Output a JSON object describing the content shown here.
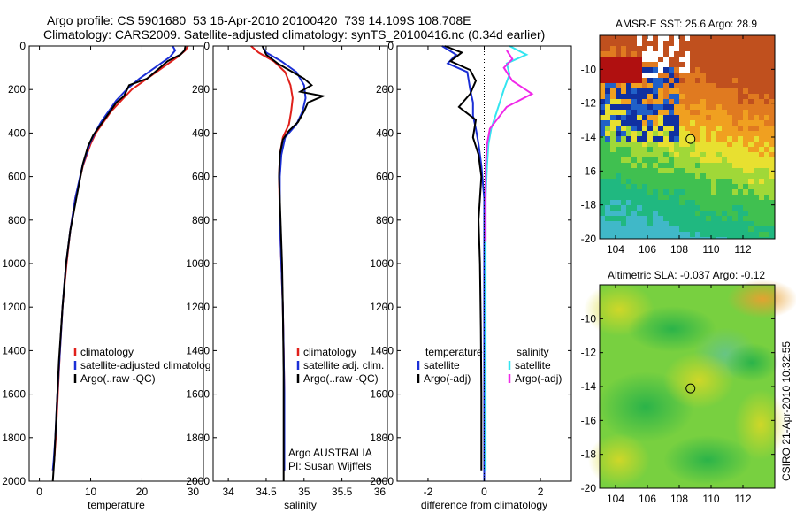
{
  "header": {
    "line1": "Argo profile: CS 5901680_53 16-Apr-2010 20100420_739 14.109S 108.708E",
    "line2": "Climatology: CARS2009. Satellite-adjusted climatology: synTS_20100416.nc (0.34d earlier)"
  },
  "side_label": "CSIRO 21-Apr-2010 10:32:55",
  "colors": {
    "climatology": "#e0201b",
    "satellite": "#1b2fd6",
    "argo": "#000000",
    "salinity_sat": "#33e5f0",
    "salinity_argo": "#f028e8"
  },
  "chart_data": [
    {
      "type": "line",
      "xlabel": "temperature",
      "ylabel": "",
      "xlim": [
        -2,
        32
      ],
      "ylim": [
        2000,
        0
      ],
      "xticks": [
        0,
        10,
        20,
        30
      ],
      "yticks": [
        0,
        200,
        400,
        600,
        800,
        1000,
        1200,
        1400,
        1600,
        1800,
        2000
      ],
      "legend": {
        "placement": "lower-right",
        "entries": [
          "climatology",
          "satellite-adjusted climatolog",
          "Argo(..raw -QC)"
        ]
      },
      "series": [
        {
          "name": "climatology",
          "color": "#e0201b",
          "x": [
            29.0,
            28.5,
            27.0,
            24.0,
            21.0,
            18.0,
            16.0,
            14.0,
            12.5,
            11.0,
            10.0,
            8.5,
            7.0,
            6.0,
            5.3,
            4.5,
            4.0,
            3.6,
            3.2,
            2.9,
            2.6
          ],
          "y": [
            0,
            20,
            50,
            100,
            150,
            200,
            250,
            300,
            350,
            400,
            450,
            550,
            700,
            850,
            1000,
            1200,
            1400,
            1600,
            1800,
            1900,
            1950
          ]
        },
        {
          "name": "satellite-adjusted climatolog",
          "color": "#1b2fd6",
          "x": [
            26.0,
            26.5,
            25.5,
            22.5,
            19.5,
            17.0,
            15.0,
            13.5,
            12.0,
            10.8,
            9.8,
            8.4,
            7.0,
            6.0,
            5.2,
            4.5,
            4.0,
            3.5,
            3.1,
            2.8,
            2.6
          ],
          "y": [
            0,
            20,
            50,
            100,
            150,
            200,
            250,
            300,
            350,
            400,
            450,
            550,
            700,
            850,
            1000,
            1200,
            1400,
            1600,
            1800,
            1900,
            1950
          ]
        },
        {
          "name": "Argo(..raw -QC)",
          "color": "#000000",
          "x": [
            28.5,
            28.3,
            27.5,
            25.0,
            23.5,
            21.0,
            17.5,
            16.5,
            15.0,
            13.2,
            12.0,
            10.5,
            9.5,
            8.5,
            7.2,
            6.0,
            5.2,
            4.5,
            3.8,
            3.3,
            2.9,
            2.6
          ],
          "y": [
            0,
            20,
            40,
            70,
            100,
            150,
            180,
            230,
            260,
            320,
            360,
            410,
            460,
            540,
            700,
            850,
            1000,
            1200,
            1450,
            1700,
            1900,
            2000
          ]
        }
      ]
    },
    {
      "type": "line",
      "xlabel": "salinity",
      "ylabel": "",
      "xlim": [
        33.8,
        36.1
      ],
      "ylim": [
        2000,
        0
      ],
      "xticks": [
        34,
        34.5,
        35,
        35.5,
        36
      ],
      "yticks": [
        0,
        200,
        400,
        600,
        800,
        1000,
        1200,
        1400,
        1600,
        1800,
        2000
      ],
      "legend": {
        "placement": "lower-right",
        "entries": [
          "climatology",
          "satellite adj. clim.",
          "Argo(..raw -QC)"
        ]
      },
      "annotation": [
        "Argo AUSTRALIA",
        "PI: Susan Wijffels"
      ],
      "series": [
        {
          "name": "climatology",
          "color": "#e0201b",
          "x": [
            34.3,
            34.4,
            34.6,
            34.75,
            34.82,
            34.85,
            34.83,
            34.8,
            34.72,
            34.68,
            34.67,
            34.68,
            34.7,
            34.72,
            34.73,
            34.74,
            34.74,
            34.74
          ],
          "y": [
            0,
            30,
            70,
            120,
            180,
            240,
            300,
            360,
            420,
            500,
            600,
            800,
            1000,
            1200,
            1400,
            1600,
            1800,
            1950
          ]
        },
        {
          "name": "satellite adj. clim.",
          "color": "#1b2fd6",
          "x": [
            34.45,
            34.5,
            34.7,
            34.9,
            35.0,
            35.02,
            34.98,
            34.9,
            34.75,
            34.7,
            34.68,
            34.68,
            34.7,
            34.72,
            34.73,
            34.74,
            34.74,
            34.74
          ],
          "y": [
            0,
            30,
            70,
            120,
            180,
            240,
            300,
            360,
            420,
            500,
            600,
            800,
            1000,
            1200,
            1400,
            1600,
            1800,
            1950
          ]
        },
        {
          "name": "Argo(..raw -QC)",
          "color": "#000000",
          "x": [
            34.45,
            34.5,
            34.65,
            34.85,
            35.0,
            35.1,
            34.95,
            35.25,
            35.05,
            35.0,
            34.92,
            34.8,
            34.72,
            34.68,
            34.67,
            34.69,
            34.71,
            34.72,
            34.73,
            34.73,
            34.73
          ],
          "y": [
            0,
            40,
            80,
            120,
            150,
            180,
            210,
            230,
            260,
            300,
            350,
            390,
            430,
            500,
            600,
            800,
            1000,
            1200,
            1500,
            1800,
            2000
          ]
        }
      ]
    },
    {
      "type": "line",
      "xlabel": "difference from climatology",
      "ylabel": "",
      "xlim": [
        -3.1,
        3.1
      ],
      "ylim": [
        2000,
        0
      ],
      "xticks": [
        -2,
        0,
        2
      ],
      "yticks": [
        0,
        200,
        400,
        600,
        800,
        1000,
        1200,
        1400,
        1600,
        1800,
        2000
      ],
      "legend": {
        "placement": "lower-center",
        "entries": [
          "temperature",
          "satellite",
          "Argo(-adj)",
          "salinity",
          "satellite",
          "Argo(-adj)"
        ]
      },
      "series": [
        {
          "name": "satellite",
          "color": "#1b2fd6",
          "x": [
            -1.5,
            -1.0,
            -1.3,
            -0.6,
            -0.5,
            -0.4,
            -0.4,
            -0.3,
            -0.2,
            -0.1,
            0.0,
            0.0,
            0.0,
            0.0,
            0.0
          ],
          "y": [
            0,
            40,
            80,
            120,
            200,
            260,
            320,
            380,
            450,
            550,
            700,
            900,
            1200,
            1600,
            2000
          ]
        },
        {
          "name": "Argo(-adj)",
          "color": "#000000",
          "x": [
            -1.4,
            -0.8,
            -1.2,
            -0.5,
            -0.3,
            -0.5,
            -0.9,
            -0.3,
            -0.4,
            -0.2,
            -0.1,
            -0.2,
            -0.15,
            -0.12,
            -0.1,
            -0.1
          ],
          "y": [
            0,
            30,
            70,
            110,
            160,
            220,
            280,
            340,
            420,
            500,
            600,
            800,
            1000,
            1300,
            1600,
            1950
          ]
        },
        {
          "name": "satellite",
          "color": "#33e5f0",
          "x": [
            0.9,
            1.5,
            0.8,
            0.9,
            0.7,
            0.55,
            0.4,
            0.25,
            0.15,
            0.1,
            0.05,
            0.05,
            0.05,
            0.05
          ],
          "y": [
            0,
            40,
            80,
            130,
            200,
            260,
            320,
            380,
            450,
            550,
            700,
            1000,
            1500,
            1950
          ]
        },
        {
          "name": "Argo(-adj)",
          "color": "#f028e8",
          "x": [
            0.8,
            1.0,
            0.7,
            1.0,
            1.7,
            0.8,
            0.5,
            0.2,
            0.1,
            0.05,
            0.05,
            0.05
          ],
          "y": [
            20,
            60,
            100,
            160,
            220,
            280,
            330,
            380,
            450,
            550,
            700,
            900
          ]
        }
      ]
    },
    {
      "type": "heatmap",
      "title": "AMSR-E SST: 25.6 Argo: 28.9",
      "xlim": [
        103,
        114
      ],
      "ylim": [
        -20,
        -8
      ],
      "xticks": [
        104,
        106,
        108,
        110,
        112
      ],
      "yticks": [
        -10,
        -12,
        -14,
        -16,
        -18,
        -20
      ],
      "float_position": {
        "lon": 108.708,
        "lat": -14.109
      }
    },
    {
      "type": "heatmap",
      "title": "Altimetric SLA: -0.037 Argo: -0.12",
      "xlim": [
        103,
        114
      ],
      "ylim": [
        -20,
        -8
      ],
      "xticks": [
        104,
        106,
        108,
        110,
        112
      ],
      "yticks": [
        -10,
        -12,
        -14,
        -16,
        -18,
        -20
      ],
      "float_position": {
        "lon": 108.708,
        "lat": -14.109
      }
    }
  ]
}
